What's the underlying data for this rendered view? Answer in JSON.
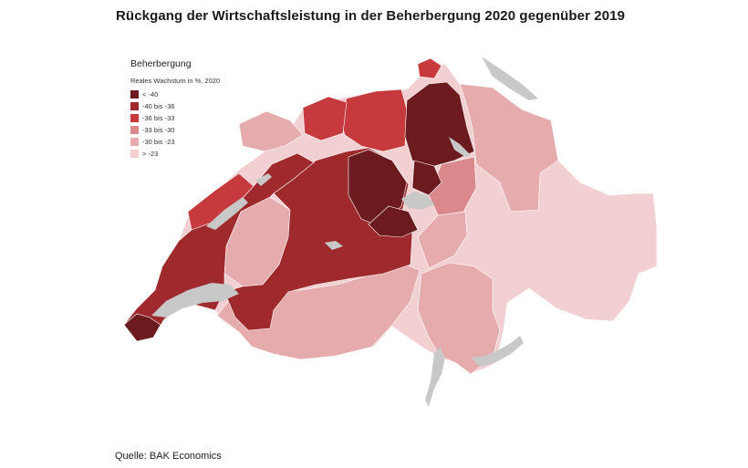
{
  "title": "Rückgang der Wirtschaftsleistung in der Beherbergung 2020 gegenüber 2019",
  "source": "Quelle: BAK Economics",
  "legend": {
    "title": "Beherbergung",
    "subtitle": "Reales Wachstum in %, 2020",
    "items": [
      {
        "label": "< -40",
        "color": "#6b1a1d"
      },
      {
        "label": "-40 bis -36",
        "color": "#9e2a2d"
      },
      {
        "label": "-36 bis -33",
        "color": "#c63a3d"
      },
      {
        "label": "-33 bis -30",
        "color": "#d9898b"
      },
      {
        "label": "-30 bis -23",
        "color": "#e6acad"
      },
      {
        "label": "> -23",
        "color": "#f2d0d1"
      }
    ]
  },
  "colors": {
    "lake": "#c8c8c8",
    "background": "#ffffff"
  }
}
